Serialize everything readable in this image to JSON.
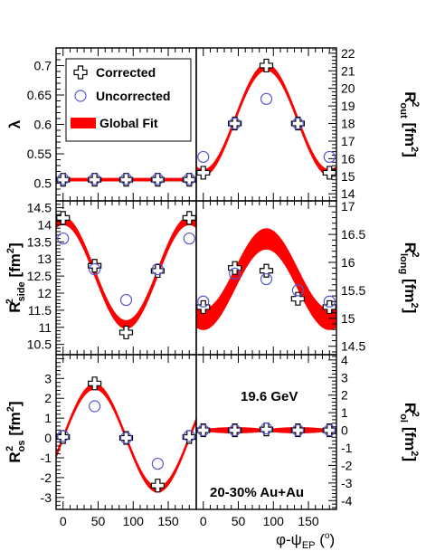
{
  "colors": {
    "band": "#ff0000",
    "corrected": "#000000",
    "uncorrected": "#5555cc",
    "frame": "#000000"
  },
  "legend": {
    "corrected": "Corrected",
    "uncorrected": "Uncorrected",
    "global_fit": "Global Fit"
  },
  "annotations": {
    "energy": "19.6 GeV",
    "centrality": "20-30%  Au+Au"
  },
  "x_axis": {
    "label_main": "φ-ψ",
    "label_sub": "EP",
    "label_unit": " (",
    "label_deg": "o",
    "label_close": ")",
    "ticks": [
      0,
      50,
      100,
      150
    ],
    "tick_labels": [
      "0",
      "50",
      "100",
      "150"
    ],
    "range": [
      -10,
      190
    ]
  },
  "chart_data": [
    {
      "type": "scatter",
      "name": "lambda",
      "ylabel": "λ",
      "ylabel_side": "left",
      "ylim": [
        0.47,
        0.73
      ],
      "yticks": [
        0.5,
        0.55,
        0.6,
        0.65,
        0.7
      ],
      "ytick_labels": [
        "0.5",
        "0.55",
        "0.6",
        "0.65",
        "0.7"
      ],
      "fit": {
        "mean": 0.506,
        "amp": 0.0,
        "halfwidth": 0.003
      },
      "series": [
        {
          "name": "Corrected",
          "x": [
            0,
            45,
            90,
            135,
            180
          ],
          "y": [
            0.506,
            0.506,
            0.506,
            0.506,
            0.506
          ]
        },
        {
          "name": "Uncorrected",
          "x": [
            0,
            45,
            90,
            135,
            180
          ],
          "y": [
            0.507,
            0.507,
            0.507,
            0.507,
            0.507
          ]
        }
      ]
    },
    {
      "type": "scatter",
      "name": "Rout2",
      "ylabel": "R",
      "ylabel_sub": "out",
      "ylabel_sup": "2",
      "ylabel_unit": " [fm",
      "ylabel_unit_sup": "2",
      "ylabel_unit_close": "]",
      "ylabel_side": "right",
      "ylim": [
        13.6,
        22.3
      ],
      "yticks": [
        14,
        15,
        16,
        17,
        18,
        19,
        20,
        21,
        22
      ],
      "ytick_labels": [
        "14",
        "15",
        "16",
        "17",
        "18",
        "19",
        "20",
        "21",
        "22"
      ],
      "fit": {
        "mean": 18.2,
        "amp": -3.0,
        "halfwidth": 0.2
      },
      "series": [
        {
          "name": "Corrected",
          "x": [
            0,
            45,
            90,
            135,
            180
          ],
          "y": [
            15.2,
            18.0,
            21.3,
            18.0,
            15.2
          ]
        },
        {
          "name": "Uncorrected",
          "x": [
            0,
            45,
            90,
            135,
            180
          ],
          "y": [
            16.1,
            18.0,
            19.4,
            18.0,
            16.1
          ]
        }
      ]
    },
    {
      "type": "scatter",
      "name": "Rside2",
      "ylabel": "R",
      "ylabel_sub": "side",
      "ylabel_sup": "2",
      "ylabel_unit": " [fm",
      "ylabel_unit_sup": "2",
      "ylabel_unit_close": "]",
      "ylabel_side": "left",
      "ylim": [
        10.2,
        14.7
      ],
      "yticks": [
        10.5,
        11,
        11.5,
        12,
        12.5,
        13,
        13.5,
        14,
        14.5
      ],
      "ytick_labels": [
        "10.5",
        "11",
        "11.5",
        "12",
        "12.5",
        "13",
        "13.5",
        "14",
        "14.5"
      ],
      "fit": {
        "mean": 12.6,
        "amp": 1.52,
        "halfwidth": 0.13
      },
      "series": [
        {
          "name": "Corrected",
          "x": [
            0,
            45,
            90,
            135,
            180
          ],
          "y": [
            14.2,
            12.8,
            10.85,
            12.65,
            14.2
          ]
        },
        {
          "name": "Uncorrected",
          "x": [
            0,
            45,
            90,
            135,
            180
          ],
          "y": [
            13.6,
            12.7,
            11.8,
            12.7,
            13.6
          ]
        }
      ]
    },
    {
      "type": "scatter",
      "name": "Rlong2",
      "ylabel": "R",
      "ylabel_sub": "long",
      "ylabel_sup": "2",
      "ylabel_unit": " [fm",
      "ylabel_unit_sup": "2",
      "ylabel_unit_close": "]",
      "ylabel_side": "right",
      "ylim": [
        14.35,
        17.1
      ],
      "yticks": [
        14.5,
        15,
        15.5,
        16,
        16.5,
        17
      ],
      "ytick_labels": [
        "14.5",
        "15",
        "15.5",
        "16",
        "16.5",
        "17"
      ],
      "fit": {
        "mean": 15.7,
        "amp": -0.72,
        "halfwidth": 0.19
      },
      "series": [
        {
          "name": "Corrected",
          "x": [
            0,
            45,
            90,
            135,
            180
          ],
          "y": [
            15.2,
            15.9,
            15.85,
            15.35,
            15.2
          ]
        },
        {
          "name": "Uncorrected",
          "x": [
            0,
            45,
            90,
            135,
            180
          ],
          "y": [
            15.3,
            15.8,
            15.7,
            15.5,
            15.3
          ]
        }
      ]
    },
    {
      "type": "scatter",
      "name": "Ros2",
      "ylabel": "R",
      "ylabel_sub": "os",
      "ylabel_sup": "2",
      "ylabel_unit": " [fm",
      "ylabel_unit_sup": "2",
      "ylabel_unit_close": "]",
      "ylabel_side": "left",
      "ylim": [
        -3.6,
        4.2
      ],
      "yticks": [
        -3,
        -2,
        -1,
        0,
        1,
        2,
        3
      ],
      "ytick_labels": [
        "-3",
        "-2",
        "-1",
        "0",
        "1",
        "2",
        "3"
      ],
      "fit": {
        "mode": "sin",
        "mean": 0.0,
        "amp": 2.6,
        "halfwidth": 0.16
      },
      "series": [
        {
          "name": "Corrected",
          "x": [
            0,
            45,
            90,
            135,
            180
          ],
          "y": [
            0.05,
            2.75,
            0.0,
            -2.4,
            0.05
          ]
        },
        {
          "name": "Uncorrected",
          "x": [
            0,
            45,
            90,
            135,
            180
          ],
          "y": [
            0.1,
            1.6,
            0.0,
            -1.3,
            0.1
          ]
        }
      ]
    },
    {
      "type": "scatter",
      "name": "Rol2",
      "ylabel": "R",
      "ylabel_sub": "ol",
      "ylabel_sup": "2",
      "ylabel_unit": " [fm",
      "ylabel_unit_sup": "2",
      "ylabel_unit_close": "]",
      "ylabel_side": "right",
      "ylim": [
        -4.5,
        4.3
      ],
      "yticks": [
        -4,
        -3,
        -2,
        -1,
        0,
        1,
        2,
        3,
        4
      ],
      "ytick_labels": [
        "-4",
        "-3",
        "-2",
        "-1",
        "0",
        "1",
        "2",
        "3",
        "4"
      ],
      "fit": {
        "mode": "flat",
        "mean": 0.0,
        "amp": 0.0,
        "halfwidth": 0.18
      },
      "series": [
        {
          "name": "Corrected",
          "x": [
            0,
            45,
            90,
            135,
            180
          ],
          "y": [
            0.0,
            0.0,
            0.05,
            0.0,
            0.0
          ]
        },
        {
          "name": "Uncorrected",
          "x": [
            0,
            45,
            90,
            135,
            180
          ],
          "y": [
            0.0,
            0.0,
            0.1,
            0.0,
            0.0
          ]
        }
      ]
    }
  ]
}
